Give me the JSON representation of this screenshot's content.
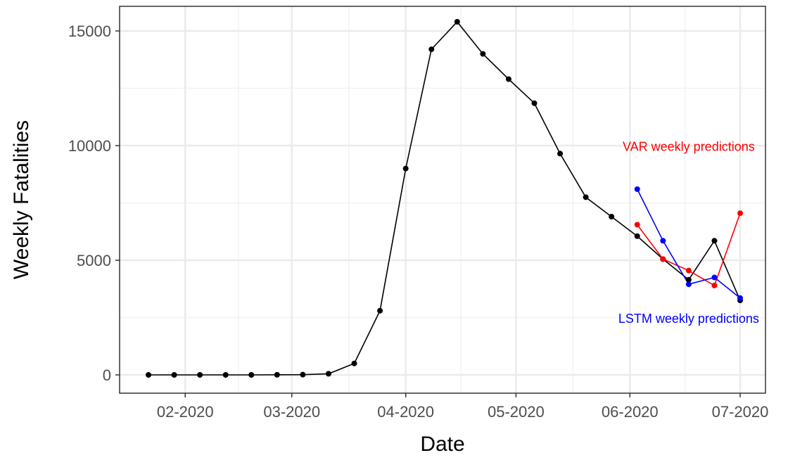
{
  "chart_data": {
    "type": "line",
    "xlabel": "Date",
    "ylabel": "Weekly Fatalities",
    "x_ticks": [
      "02-2020",
      "03-2020",
      "04-2020",
      "05-2020",
      "06-2020",
      "07-2020"
    ],
    "y_ticks": [
      0,
      5000,
      10000,
      15000
    ],
    "grid": true,
    "series": [
      {
        "color": "#000000",
        "x": [
          "2020-01-22",
          "2020-01-29",
          "2020-02-05",
          "2020-02-12",
          "2020-02-19",
          "2020-02-26",
          "2020-03-04",
          "2020-03-11",
          "2020-03-18",
          "2020-03-25",
          "2020-04-01",
          "2020-04-08",
          "2020-04-15",
          "2020-04-22",
          "2020-04-29",
          "2020-05-06",
          "2020-05-13",
          "2020-05-20",
          "2020-05-27",
          "2020-06-03",
          "2020-06-10",
          "2020-06-17",
          "2020-06-24",
          "2020-07-01"
        ],
        "y": [
          0,
          0,
          0,
          0,
          0,
          5,
          10,
          50,
          500,
          2800,
          9000,
          14200,
          15400,
          14000,
          12900,
          11850,
          9650,
          7750,
          6900,
          6050,
          5050,
          4150,
          5850,
          3250
        ]
      },
      {
        "name": "VAR weekly predictions",
        "color": "#ff0000",
        "x": [
          "2020-06-03",
          "2020-06-10",
          "2020-06-17",
          "2020-06-24",
          "2020-07-01"
        ],
        "y": [
          6550,
          5050,
          4550,
          3900,
          7050
        ]
      },
      {
        "name": "LSTM weekly predictions",
        "color": "#0000ff",
        "x": [
          "2020-06-03",
          "2020-06-10",
          "2020-06-17",
          "2020-06-24",
          "2020-07-01"
        ],
        "y": [
          8100,
          5850,
          3950,
          4250,
          3350
        ]
      }
    ],
    "annotations": [
      {
        "text": "VAR weekly predictions",
        "color": "#ff0000",
        "x": "2020-06-17",
        "y": 9950
      },
      {
        "text": "LSTM weekly predictions",
        "color": "#0000ff",
        "x": "2020-06-17",
        "y": 2450
      }
    ]
  }
}
